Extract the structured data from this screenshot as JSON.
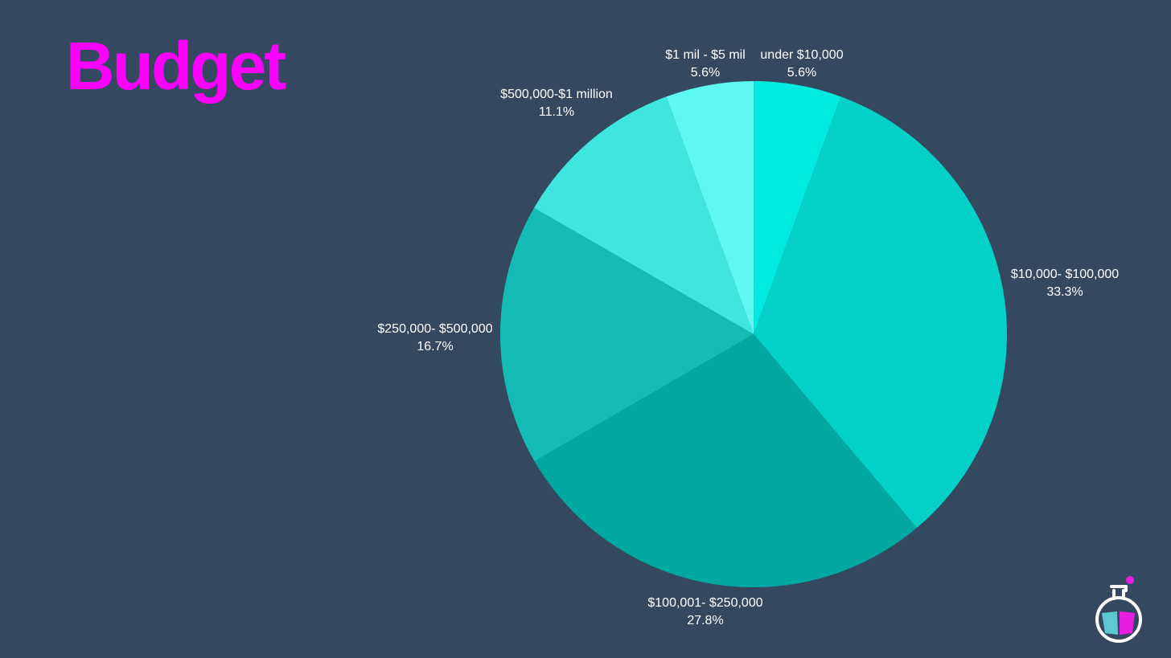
{
  "slide": {
    "title": "Budget",
    "title_color": "#ff00ff",
    "background_color": "#34485f",
    "label_color": "#ffffff"
  },
  "logo": {
    "icon": "flask-film-logo",
    "colors": {
      "outline": "#ffffff",
      "dot": "#e91ee0",
      "film_left": "#5cc8d0",
      "film_right": "#e91ee0"
    }
  },
  "chart_data": {
    "type": "pie",
    "title": "",
    "start_angle_deg": 0,
    "direction": "clockwise",
    "slices": [
      {
        "label": "under $10,000",
        "value": 5.6,
        "display": "5.6%",
        "color": "#00ebe0"
      },
      {
        "label": "$10,000- $100,000",
        "value": 33.3,
        "display": "33.3%",
        "color": "#03d0c6"
      },
      {
        "label": "$100,001- $250,000",
        "value": 27.8,
        "display": "27.8%",
        "color": "#00a8a1"
      },
      {
        "label": "$250,000- $500,000",
        "value": 16.7,
        "display": "16.7%",
        "color": "#14bcb5"
      },
      {
        "label": "$500,000-$1 million",
        "value": 11.1,
        "display": "11.1%",
        "color": "#3fe6df"
      },
      {
        "label": "$1 mil - $5 mil",
        "value": 5.6,
        "display": "5.6%",
        "color": "#5df8f2"
      }
    ]
  }
}
